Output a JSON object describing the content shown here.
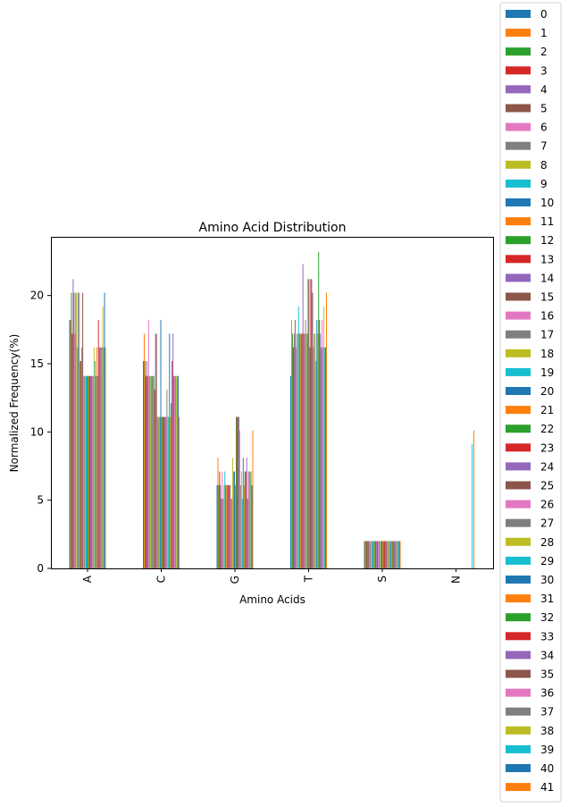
{
  "chart_data": {
    "type": "bar",
    "title": "Amino Acid Distribution",
    "xlabel": "Amino Acids",
    "ylabel": "Normalized Frequency(%)",
    "categories": [
      "A",
      "C",
      "G",
      "T",
      "S",
      "N"
    ],
    "ylim": [
      0,
      24.3
    ],
    "yticks": [
      0,
      5,
      10,
      15,
      20
    ],
    "grid": false,
    "legend_position": "outside-right",
    "colors": [
      "#1f77b4",
      "#ff7f0e",
      "#2ca02c",
      "#d62728",
      "#9467bd",
      "#8c564b",
      "#e377c2",
      "#7f7f7f",
      "#bcbd22",
      "#17becf"
    ],
    "series": [
      {
        "name": "0",
        "values": [
          18.2,
          15.2,
          6.1,
          14.1,
          2.0,
          0
        ]
      },
      {
        "name": "1",
        "values": [
          18.2,
          17.2,
          8.1,
          18.2,
          2.0,
          0
        ]
      },
      {
        "name": "2",
        "values": [
          20.2,
          15.2,
          6.1,
          17.2,
          2.0,
          0
        ]
      },
      {
        "name": "3",
        "values": [
          17.2,
          14.1,
          7.1,
          16.2,
          2.0,
          0
        ]
      },
      {
        "name": "4",
        "values": [
          21.2,
          15.2,
          6.1,
          17.2,
          2.0,
          0
        ]
      },
      {
        "name": "5",
        "values": [
          20.2,
          14.1,
          5.1,
          18.2,
          2.0,
          0
        ]
      },
      {
        "name": "6",
        "values": [
          17.2,
          18.2,
          7.1,
          16.2,
          2.0,
          0
        ]
      },
      {
        "name": "7",
        "values": [
          20.2,
          14.1,
          5.1,
          17.2,
          2.0,
          0
        ]
      },
      {
        "name": "8",
        "values": [
          20.2,
          14.1,
          6.1,
          17.2,
          2.0,
          0
        ]
      },
      {
        "name": "9",
        "values": [
          16.2,
          14.1,
          7.1,
          19.2,
          2.0,
          0
        ]
      },
      {
        "name": "10",
        "values": [
          20.2,
          14.1,
          6.1,
          17.2,
          2.0,
          0
        ]
      },
      {
        "name": "11",
        "values": [
          20.2,
          14.1,
          6.1,
          17.2,
          2.0,
          0
        ]
      },
      {
        "name": "12",
        "values": [
          15.2,
          14.1,
          6.1,
          17.2,
          2.0,
          0
        ]
      },
      {
        "name": "13",
        "values": [
          15.2,
          13.1,
          6.1,
          17.2,
          2.0,
          0
        ]
      },
      {
        "name": "14",
        "values": [
          16.2,
          17.2,
          6.1,
          22.3,
          2.0,
          0
        ]
      },
      {
        "name": "15",
        "values": [
          20.2,
          17.2,
          6.1,
          17.2,
          2.0,
          0
        ]
      },
      {
        "name": "16",
        "values": [
          14.1,
          11.1,
          5.1,
          17.2,
          2.0,
          0
        ]
      },
      {
        "name": "17",
        "values": [
          14.1,
          11.1,
          5.1,
          18.2,
          2.0,
          0
        ]
      },
      {
        "name": "18",
        "values": [
          14.1,
          11.1,
          8.1,
          17.2,
          2.0,
          0
        ]
      },
      {
        "name": "19",
        "values": [
          14.1,
          11.1,
          7.1,
          17.2,
          2.0,
          0
        ]
      },
      {
        "name": "20",
        "values": [
          14.1,
          18.2,
          7.1,
          21.2,
          2.0,
          0
        ]
      },
      {
        "name": "21",
        "values": [
          14.1,
          11.1,
          6.1,
          21.2,
          2.0,
          0
        ]
      },
      {
        "name": "22",
        "values": [
          14.1,
          11.1,
          11.1,
          16.2,
          2.0,
          0
        ]
      },
      {
        "name": "23",
        "values": [
          14.1,
          11.1,
          11.1,
          21.2,
          2.0,
          0
        ]
      },
      {
        "name": "24",
        "values": [
          14.1,
          11.1,
          11.1,
          21.2,
          2.0,
          0
        ]
      },
      {
        "name": "25",
        "values": [
          14.1,
          11.1,
          11.1,
          20.2,
          2.0,
          0
        ]
      },
      {
        "name": "26",
        "values": [
          14.1,
          11.1,
          10.1,
          16.2,
          2.0,
          0
        ]
      },
      {
        "name": "27",
        "values": [
          14.1,
          13.1,
          6.1,
          17.2,
          2.0,
          0
        ]
      },
      {
        "name": "28",
        "values": [
          16.2,
          11.1,
          7.1,
          17.2,
          2.0,
          0
        ]
      },
      {
        "name": "29",
        "values": [
          15.2,
          11.1,
          5.1,
          15.2,
          2.0,
          0
        ]
      },
      {
        "name": "30",
        "values": [
          14.1,
          17.2,
          8.1,
          18.2,
          2.0,
          0
        ]
      },
      {
        "name": "31",
        "values": [
          16.2,
          11.1,
          6.1,
          17.2,
          2.0,
          0
        ]
      },
      {
        "name": "32",
        "values": [
          14.1,
          12.1,
          7.1,
          23.2,
          2.0,
          0
        ]
      },
      {
        "name": "33",
        "values": [
          18.2,
          15.2,
          7.1,
          18.2,
          2.0,
          0
        ]
      },
      {
        "name": "34",
        "values": [
          16.2,
          17.2,
          8.1,
          17.2,
          2.0,
          0
        ]
      },
      {
        "name": "35",
        "values": [
          16.2,
          14.1,
          5.1,
          16.2,
          2.0,
          0
        ]
      },
      {
        "name": "36",
        "values": [
          16.2,
          14.1,
          7.1,
          18.2,
          2.0,
          0
        ]
      },
      {
        "name": "37",
        "values": [
          16.2,
          14.1,
          7.1,
          16.2,
          2.0,
          0
        ]
      },
      {
        "name": "38",
        "values": [
          19.2,
          14.1,
          7.1,
          19.2,
          2.0,
          0
        ]
      },
      {
        "name": "39",
        "values": [
          16.2,
          14.1,
          7.1,
          16.2,
          2.0,
          9.1
        ]
      },
      {
        "name": "40",
        "values": [
          20.2,
          14.1,
          6.1,
          16.2,
          2.0,
          0
        ]
      },
      {
        "name": "41",
        "values": [
          16.2,
          11.1,
          10.1,
          20.2,
          2.0,
          10.1
        ]
      }
    ]
  }
}
